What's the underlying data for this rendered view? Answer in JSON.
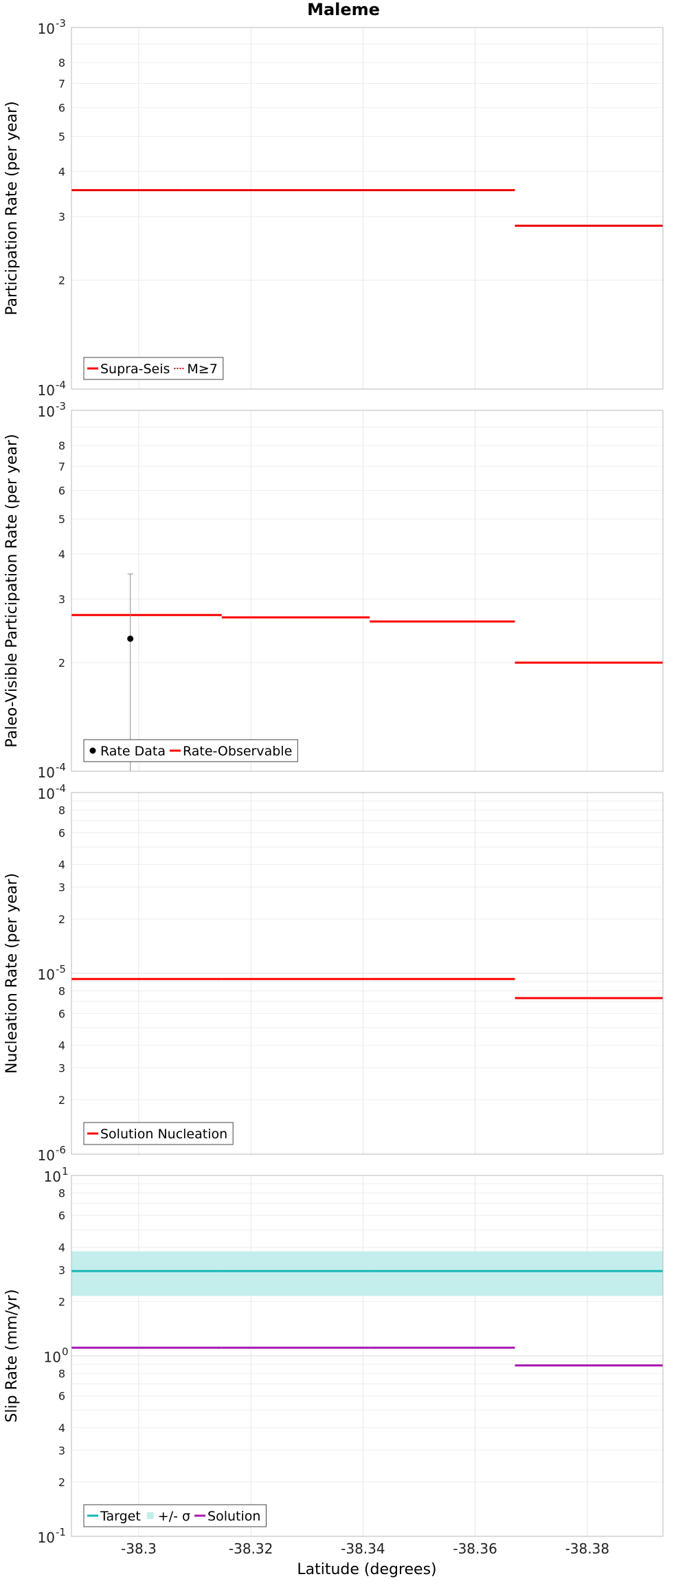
{
  "chart_data": {
    "title": "Maleme",
    "xlabel": "Latitude (degrees)",
    "xlim": [
      -38.288,
      -38.3935
    ],
    "x_ticks": [
      -38.3,
      -38.32,
      -38.34,
      -38.36,
      -38.38
    ],
    "x_tick_labels": [
      "-38.3",
      "-38.32",
      "-38.34",
      "-38.36",
      "-38.38"
    ],
    "grid": true,
    "x_segments": [
      [
        -38.288,
        -38.3148
      ],
      [
        -38.3148,
        -38.3412
      ],
      [
        -38.3412,
        -38.3671
      ],
      [
        -38.3671,
        -38.3935
      ]
    ],
    "panels": [
      {
        "type": "line",
        "ylabel": "Participation Rate (per year)",
        "yscale": "log",
        "ylim": [
          0.0001,
          0.001
        ],
        "major_labels": [
          {
            "v": 0.001,
            "base": "10",
            "exp": "-3"
          },
          {
            "v": 0.0001,
            "base": "10",
            "exp": "-4"
          }
        ],
        "minor_labels": [
          {
            "v": 0.0008,
            "text": "8"
          },
          {
            "v": 0.0007,
            "text": "7"
          },
          {
            "v": 0.0006,
            "text": "6"
          },
          {
            "v": 0.0005,
            "text": "5"
          },
          {
            "v": 0.0004,
            "text": "4"
          },
          {
            "v": 0.0003,
            "text": "3"
          },
          {
            "v": 0.0002,
            "text": "2"
          }
        ],
        "series": [
          {
            "name": "Supra-Seis",
            "color": "#ff0000",
            "style": "solid",
            "values": [
              0.000355,
              0.000355,
              0.000355,
              0.000283
            ]
          },
          {
            "name": "M≥7",
            "color": "#cc0000",
            "style": "dotted",
            "values": [
              0.000355,
              0.000355,
              0.000355,
              0.000283
            ]
          }
        ],
        "legend": [
          {
            "label": "Supra-Seis",
            "swatch": "line",
            "color": "#ff0000",
            "style": "solid"
          },
          {
            "label": "M≥7",
            "swatch": "line",
            "color": "#cc0000",
            "style": "dotted"
          }
        ],
        "legend_position": "bottom-left"
      },
      {
        "type": "line",
        "ylabel": "Paleo-Visible Participation Rate (per year)",
        "yscale": "log",
        "ylim": [
          0.0001,
          0.001
        ],
        "major_labels": [
          {
            "v": 0.001,
            "base": "10",
            "exp": "-3"
          },
          {
            "v": 0.0001,
            "base": "10",
            "exp": "-4"
          }
        ],
        "minor_labels": [
          {
            "v": 0.0008,
            "text": "8"
          },
          {
            "v": 0.0007,
            "text": "7"
          },
          {
            "v": 0.0006,
            "text": "6"
          },
          {
            "v": 0.0005,
            "text": "5"
          },
          {
            "v": 0.0004,
            "text": "4"
          },
          {
            "v": 0.0003,
            "text": "3"
          },
          {
            "v": 0.0002,
            "text": "2"
          }
        ],
        "series": [
          {
            "name": "Rate-Observable",
            "color": "#ff0000",
            "style": "solid",
            "values": [
              0.000271,
              0.000267,
              0.00026,
              0.0002
            ]
          }
        ],
        "points": [
          {
            "name": "Rate Data",
            "color": "#000000",
            "x": -38.2985,
            "y": 0.000233,
            "y_low": 0.0001,
            "y_high": 0.000352
          }
        ],
        "legend": [
          {
            "label": "Rate Data",
            "swatch": "dot",
            "color": "#000000"
          },
          {
            "label": "Rate-Observable",
            "swatch": "line",
            "color": "#ff0000",
            "style": "solid"
          }
        ],
        "legend_position": "bottom-left"
      },
      {
        "type": "line",
        "ylabel": "Nucleation Rate (per year)",
        "yscale": "log",
        "ylim": [
          1e-06,
          0.0001
        ],
        "major_labels": [
          {
            "v": 0.0001,
            "base": "10",
            "exp": "-4"
          },
          {
            "v": 1e-05,
            "base": "10",
            "exp": "-5"
          },
          {
            "v": 1e-06,
            "base": "10",
            "exp": "-6"
          }
        ],
        "minor_labels": [
          {
            "v": 8e-05,
            "text": "8"
          },
          {
            "v": 6e-05,
            "text": "6"
          },
          {
            "v": 4e-05,
            "text": "4"
          },
          {
            "v": 3e-05,
            "text": "3"
          },
          {
            "v": 2e-05,
            "text": "2"
          },
          {
            "v": 8e-06,
            "text": "8"
          },
          {
            "v": 6e-06,
            "text": "6"
          },
          {
            "v": 4e-06,
            "text": "4"
          },
          {
            "v": 3e-06,
            "text": "3"
          },
          {
            "v": 2e-06,
            "text": "2"
          }
        ],
        "series": [
          {
            "name": "Solution Nucleation",
            "color": "#ff0000",
            "style": "solid",
            "values": [
              9.3e-06,
              9.3e-06,
              9.3e-06,
              7.3e-06
            ]
          }
        ],
        "legend": [
          {
            "label": "Solution Nucleation",
            "swatch": "line",
            "color": "#ff0000",
            "style": "solid"
          }
        ],
        "legend_position": "bottom-left"
      },
      {
        "type": "line",
        "ylabel": "Slip Rate (mm/yr)",
        "yscale": "log",
        "ylim": [
          0.1,
          10
        ],
        "major_labels": [
          {
            "v": 10,
            "base": "10",
            "exp": "1"
          },
          {
            "v": 1,
            "base": "10",
            "exp": "0"
          },
          {
            "v": 0.1,
            "base": "10",
            "exp": "-1"
          }
        ],
        "minor_labels": [
          {
            "v": 8,
            "text": "8"
          },
          {
            "v": 6,
            "text": "6"
          },
          {
            "v": 4,
            "text": "4"
          },
          {
            "v": 3,
            "text": "3"
          },
          {
            "v": 2,
            "text": "2"
          },
          {
            "v": 0.8,
            "text": "8"
          },
          {
            "v": 0.6,
            "text": "6"
          },
          {
            "v": 0.4,
            "text": "4"
          },
          {
            "v": 0.3,
            "text": "3"
          },
          {
            "v": 0.2,
            "text": "2"
          }
        ],
        "bands": [
          {
            "name": "+/- σ",
            "color": "#c4eeec",
            "low": 2.15,
            "high": 3.8
          }
        ],
        "series": [
          {
            "name": "Target",
            "color": "#16b6b6",
            "style": "solid",
            "values": [
              2.95,
              2.95,
              2.95,
              2.95
            ]
          },
          {
            "name": "Solution",
            "color": "#a818b2",
            "style": "solid",
            "values": [
              1.11,
              1.11,
              1.11,
              0.885
            ]
          }
        ],
        "legend": [
          {
            "label": "Target",
            "swatch": "line",
            "color": "#16b6b6",
            "style": "solid"
          },
          {
            "label": "+/- σ",
            "swatch": "band",
            "color": "#c4eeec"
          },
          {
            "label": "Solution",
            "swatch": "line",
            "color": "#a818b2",
            "style": "solid"
          }
        ],
        "legend_position": "bottom-left"
      }
    ]
  }
}
